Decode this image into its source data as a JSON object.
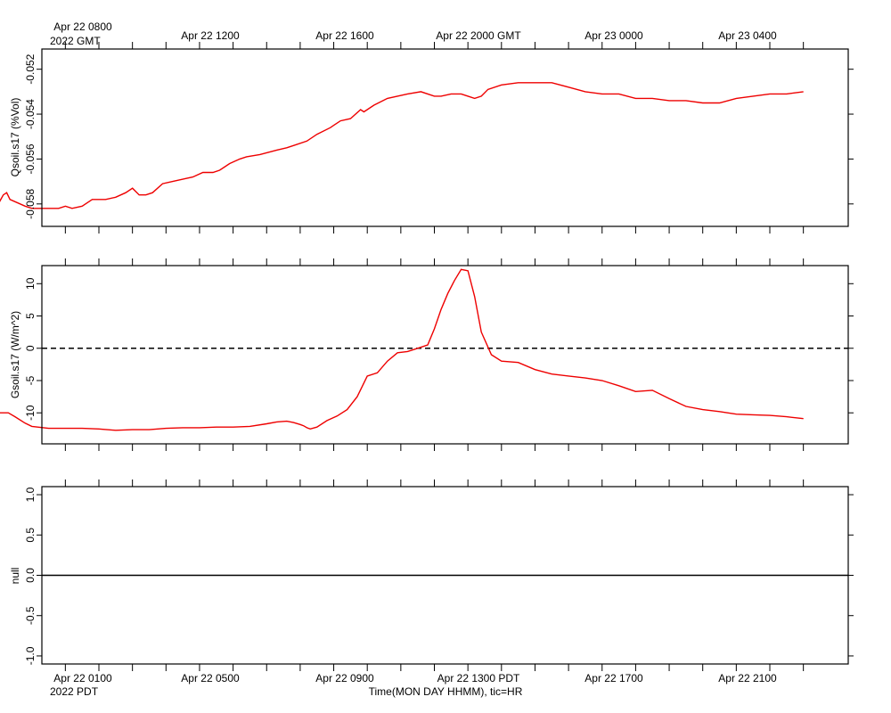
{
  "top_axis": {
    "ticks": [
      {
        "label": "Apr 22 0800",
        "sub": "2022 GMT"
      },
      {
        "label": "Apr 22 1200"
      },
      {
        "label": "Apr 22 1600"
      },
      {
        "label": "Apr 22 2000 GMT"
      },
      {
        "label": "Apr 23 0000"
      },
      {
        "label": "Apr 23 0400"
      }
    ]
  },
  "bottom_axis": {
    "ticks": [
      {
        "label": "Apr 22 0100",
        "sub": "2022 PDT"
      },
      {
        "label": "Apr 22 0500"
      },
      {
        "label": "Apr 22 0900"
      },
      {
        "label": "Apr 22 1300 PDT"
      },
      {
        "label": "Apr 22 1700"
      },
      {
        "label": "Apr 22 2100"
      }
    ],
    "xlabel": "Time(MON DAY HHMM), tic=HR"
  },
  "chart_data": [
    {
      "type": "line",
      "ylabel": "Qsoil.s17 (%Vol)",
      "x_unit": "hours since Apr 22 0000 PDT",
      "xlim": [
        0,
        24
      ],
      "ylim": [
        -0.059,
        -0.0511
      ],
      "ytick_values": [
        -0.058,
        -0.056,
        -0.054,
        -0.052
      ],
      "yticks": [
        "-0.058",
        "-0.056",
        "-0.054",
        "-0.052"
      ],
      "color": "#ee0000",
      "x": [
        0.0,
        0.15,
        0.25,
        0.35,
        0.8,
        1.0,
        1.5,
        1.8,
        2.0,
        2.2,
        2.5,
        2.8,
        3.2,
        3.5,
        3.8,
        4.0,
        4.2,
        4.4,
        4.6,
        4.9,
        5.2,
        5.5,
        5.8,
        6.1,
        6.4,
        6.6,
        6.9,
        7.2,
        7.4,
        7.8,
        8.3,
        8.6,
        8.8,
        9.2,
        9.5,
        9.9,
        10.0,
        10.2,
        10.5,
        10.8,
        10.9,
        11.0,
        11.2,
        11.6,
        12.2,
        12.6,
        13.0,
        13.2,
        13.5,
        13.7,
        13.8,
        14.0,
        14.2,
        14.4,
        14.6,
        15.0,
        15.5,
        16.0,
        16.5,
        17.0,
        17.5,
        18.0,
        18.5,
        19.0,
        19.5,
        20.0,
        20.5,
        21.0,
        21.5,
        22.0,
        22.5,
        23.0,
        23.5,
        24.0
      ],
      "y": [
        -0.058,
        -0.0576,
        -0.0575,
        -0.0578,
        -0.0581,
        -0.0582,
        -0.0582,
        -0.0582,
        -0.0581,
        -0.0582,
        -0.0581,
        -0.0578,
        -0.0578,
        -0.0577,
        -0.0575,
        -0.0573,
        -0.0576,
        -0.0576,
        -0.0575,
        -0.0571,
        -0.057,
        -0.0569,
        -0.0568,
        -0.0566,
        -0.0566,
        -0.0565,
        -0.0562,
        -0.056,
        -0.0559,
        -0.0558,
        -0.0556,
        -0.0555,
        -0.0554,
        -0.0552,
        -0.0549,
        -0.0546,
        -0.0545,
        -0.0543,
        -0.0542,
        -0.0538,
        -0.0539,
        -0.0538,
        -0.0536,
        -0.0533,
        -0.0531,
        -0.053,
        -0.0532,
        -0.0532,
        -0.0531,
        -0.0531,
        -0.0531,
        -0.0532,
        -0.0533,
        -0.0532,
        -0.0529,
        -0.0527,
        -0.0526,
        -0.0526,
        -0.0526,
        -0.0528,
        -0.053,
        -0.0531,
        -0.0531,
        -0.0533,
        -0.0533,
        -0.0534,
        -0.0534,
        -0.0535,
        -0.0535,
        -0.0533,
        -0.0532,
        -0.0531,
        -0.0531,
        -0.053
      ]
    },
    {
      "type": "line",
      "ylabel": "Gsoil.s17 (W/m^2)",
      "x_unit": "hours since Apr 22 0000 PDT",
      "xlim": [
        0,
        24
      ],
      "ylim": [
        -14.8,
        12.8
      ],
      "ytick_values": [
        -10,
        -5,
        0,
        5,
        10
      ],
      "yticks": [
        "-10",
        "-5",
        "0",
        "5",
        "10"
      ],
      "zero_line": "dashed",
      "color": "#ee0000",
      "x": [
        0.0,
        0.3,
        0.5,
        0.8,
        1.0,
        1.5,
        2.0,
        2.5,
        3.0,
        3.5,
        4.0,
        4.5,
        5.0,
        5.5,
        6.0,
        6.5,
        7.0,
        7.5,
        8.0,
        8.3,
        8.6,
        8.8,
        9.0,
        9.1,
        9.2,
        9.3,
        9.5,
        9.8,
        10.1,
        10.4,
        10.7,
        11.0,
        11.3,
        11.6,
        11.9,
        12.2,
        12.5,
        12.8,
        13.0,
        13.2,
        13.4,
        13.6,
        13.8,
        14.0,
        14.2,
        14.4,
        14.7,
        15.0,
        15.5,
        16.0,
        16.5,
        17.0,
        17.5,
        18.0,
        18.5,
        19.0,
        19.5,
        20.0,
        20.5,
        21.0,
        21.5,
        22.0,
        22.5,
        23.0,
        23.5,
        24.0
      ],
      "y": [
        -10.0,
        -10.0,
        -10.6,
        -11.6,
        -12.1,
        -12.4,
        -12.4,
        -12.4,
        -12.5,
        -12.7,
        -12.6,
        -12.6,
        -12.4,
        -12.3,
        -12.3,
        -12.2,
        -12.2,
        -12.1,
        -11.7,
        -11.4,
        -11.3,
        -11.5,
        -11.8,
        -12.0,
        -12.3,
        -12.5,
        -12.2,
        -11.2,
        -10.5,
        -9.5,
        -7.5,
        -4.3,
        -3.8,
        -2.0,
        -0.7,
        -0.5,
        0.0,
        0.5,
        3.0,
        6.0,
        8.5,
        10.5,
        12.2,
        12.0,
        8.0,
        2.5,
        -1.0,
        -2.0,
        -2.2,
        -3.3,
        -4.0,
        -4.3,
        -4.6,
        -5.0,
        -5.8,
        -6.7,
        -6.5,
        -7.8,
        -9.0,
        -9.5,
        -9.8,
        -10.2,
        -10.3,
        -10.4,
        -10.6,
        -10.9
      ]
    },
    {
      "type": "line",
      "ylabel": "null",
      "x_unit": "hours since Apr 22 0000 PDT",
      "xlim": [
        0,
        24
      ],
      "ylim": [
        -1.1,
        1.1
      ],
      "ytick_values": [
        -1.0,
        -0.5,
        0.0,
        0.5,
        1.0
      ],
      "yticks": [
        "-1.0",
        "-0.5",
        "0.0",
        "0.5",
        "1.0"
      ],
      "zero_line": "solid",
      "x": [],
      "y": []
    }
  ]
}
